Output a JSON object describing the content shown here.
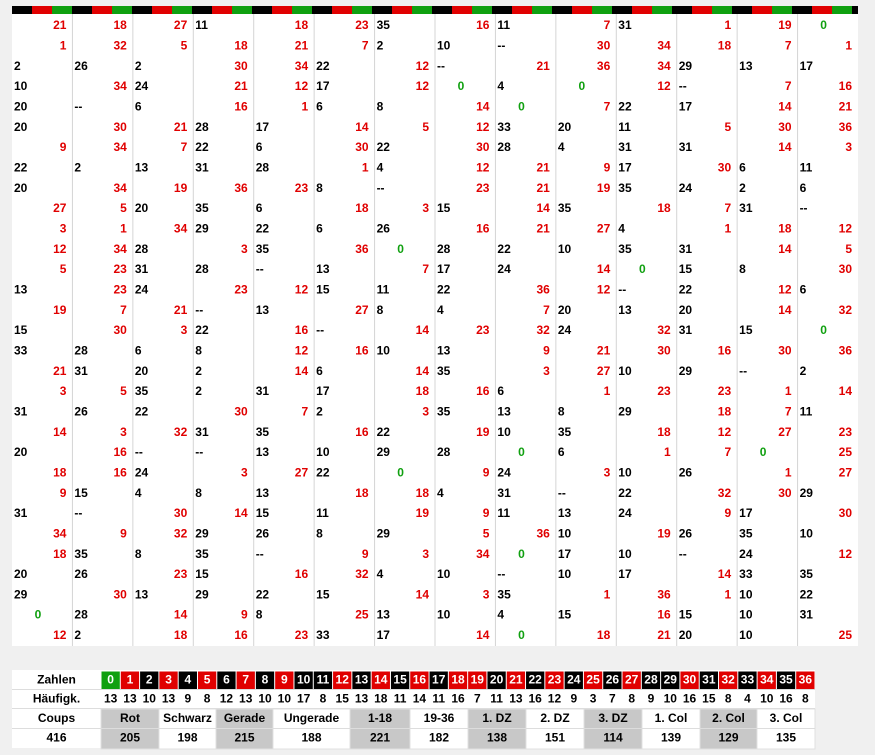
{
  "permanence": [
    [
      21,
      18,
      27,
      11,
      18,
      23,
      35,
      16,
      11,
      7,
      31,
      1,
      19,
      0
    ],
    [
      1,
      32,
      5,
      18,
      21,
      7,
      2,
      10,
      "--",
      30,
      34,
      18,
      7,
      1
    ],
    [
      2,
      26,
      2,
      30,
      34,
      22,
      12,
      "--",
      21,
      36,
      34,
      29,
      13,
      17
    ],
    [
      10,
      34,
      24,
      21,
      12,
      17,
      12,
      0,
      4,
      0,
      12,
      "--",
      7,
      16
    ],
    [
      20,
      "--",
      6,
      16,
      1,
      6,
      8,
      14,
      0,
      7,
      22,
      17,
      14,
      21
    ],
    [
      20,
      30,
      21,
      28,
      17,
      14,
      5,
      12,
      33,
      20,
      11,
      5,
      30,
      36
    ],
    [
      9,
      34,
      7,
      22,
      6,
      30,
      22,
      30,
      28,
      4,
      31,
      31,
      14,
      3
    ],
    [
      22,
      2,
      13,
      31,
      28,
      1,
      4,
      12,
      21,
      9,
      17,
      30,
      6,
      11
    ],
    [
      20,
      34,
      19,
      36,
      23,
      8,
      "--",
      23,
      21,
      19,
      35,
      24,
      2,
      6
    ],
    [
      27,
      5,
      20,
      35,
      6,
      18,
      3,
      15,
      14,
      35,
      18,
      7,
      31,
      "--"
    ],
    [
      3,
      1,
      34,
      29,
      22,
      6,
      26,
      16,
      21,
      27,
      4,
      1,
      18,
      12
    ],
    [
      12,
      34,
      28,
      3,
      35,
      36,
      0,
      28,
      22,
      10,
      35,
      31,
      14,
      5
    ],
    [
      5,
      23,
      31,
      28,
      "--",
      13,
      7,
      17,
      24,
      14,
      0,
      15,
      8,
      30
    ],
    [
      13,
      23,
      24,
      23,
      12,
      15,
      11,
      22,
      36,
      12,
      "--",
      22,
      12,
      6
    ],
    [
      19,
      7,
      21,
      "--",
      13,
      27,
      8,
      4,
      7,
      20,
      13,
      20,
      14,
      32
    ],
    [
      15,
      30,
      3,
      22,
      16,
      "--",
      14,
      23,
      32,
      24,
      32,
      31,
      15,
      0
    ],
    [
      33,
      28,
      6,
      8,
      12,
      16,
      10,
      13,
      9,
      21,
      30,
      16,
      30,
      36
    ],
    [
      21,
      31,
      20,
      2,
      14,
      6,
      14,
      35,
      3,
      27,
      10,
      29,
      "--",
      2
    ],
    [
      3,
      5,
      35,
      2,
      31,
      17,
      18,
      16,
      6,
      1,
      23,
      23,
      1,
      14
    ],
    [
      31,
      26,
      22,
      30,
      7,
      2,
      3,
      35,
      13,
      8,
      29,
      18,
      7,
      11
    ],
    [
      14,
      3,
      32,
      31,
      35,
      16,
      22,
      19,
      10,
      35,
      18,
      12,
      27,
      23
    ],
    [
      20,
      16,
      "--",
      "--",
      13,
      10,
      29,
      28,
      0,
      6,
      1,
      7,
      0,
      25
    ],
    [
      18,
      16,
      24,
      3,
      27,
      22,
      0,
      9,
      24,
      3,
      10,
      26,
      1,
      27
    ],
    [
      9,
      15,
      4,
      8,
      13,
      18,
      18,
      4,
      31,
      "--",
      22,
      32,
      30,
      29
    ],
    [
      31,
      "--",
      30,
      14,
      15,
      11,
      19,
      9,
      11,
      13,
      24,
      9,
      17,
      30
    ],
    [
      34,
      9,
      32,
      29,
      26,
      8,
      29,
      5,
      36,
      10,
      19,
      26,
      35,
      10
    ],
    [
      18,
      35,
      8,
      35,
      "--",
      9,
      3,
      34,
      0,
      17,
      10,
      "--",
      24,
      12
    ],
    [
      20,
      26,
      23,
      15,
      16,
      32,
      4,
      10,
      "--",
      10,
      17,
      14,
      33,
      35
    ],
    [
      29,
      30,
      13,
      29,
      22,
      15,
      14,
      3,
      35,
      1,
      36,
      1,
      10,
      22
    ],
    [
      0,
      28,
      14,
      9,
      8,
      25,
      13,
      10,
      4,
      15,
      16,
      15,
      10,
      31
    ],
    [
      12,
      2,
      18,
      16,
      23,
      33,
      17,
      14,
      0,
      18,
      21,
      20,
      10,
      25
    ]
  ],
  "zahlen": {
    "label": "Zahlen",
    "numbers": [
      0,
      1,
      2,
      3,
      4,
      5,
      6,
      7,
      8,
      9,
      10,
      11,
      12,
      13,
      14,
      15,
      16,
      17,
      18,
      19,
      20,
      21,
      22,
      23,
      24,
      25,
      26,
      27,
      28,
      29,
      30,
      31,
      32,
      33,
      34,
      35,
      36
    ],
    "colors": [
      "#10a010",
      "#e00000",
      "#000000",
      "#e00000",
      "#000000",
      "#e00000",
      "#000000",
      "#e00000",
      "#000000",
      "#e00000",
      "#000000",
      "#000000",
      "#e00000",
      "#000000",
      "#e00000",
      "#000000",
      "#e00000",
      "#000000",
      "#e00000",
      "#e00000",
      "#000000",
      "#e00000",
      "#000000",
      "#e00000",
      "#000000",
      "#e00000",
      "#000000",
      "#e00000",
      "#000000",
      "#000000",
      "#e00000",
      "#000000",
      "#e00000",
      "#000000",
      "#e00000",
      "#000000",
      "#e00000"
    ]
  },
  "haeufigkeit": {
    "label": "Häufigk.",
    "values": [
      13,
      13,
      10,
      13,
      9,
      8,
      12,
      13,
      10,
      10,
      17,
      8,
      15,
      13,
      18,
      11,
      14,
      11,
      16,
      7,
      11,
      13,
      16,
      12,
      9,
      3,
      7,
      8,
      9,
      10,
      16,
      15,
      8,
      4,
      10,
      16,
      8
    ]
  },
  "coups": {
    "label": "Coups",
    "total": 416,
    "categories": [
      "Rot",
      "Schwarz",
      "Gerade",
      "Ungerade",
      "1-18",
      "19-36",
      "1. DZ",
      "2. DZ",
      "3. DZ",
      "1. Col",
      "2. Col",
      "3. Col"
    ],
    "values": [
      205,
      198,
      215,
      188,
      221,
      182,
      138,
      151,
      114,
      139,
      129,
      135
    ]
  }
}
